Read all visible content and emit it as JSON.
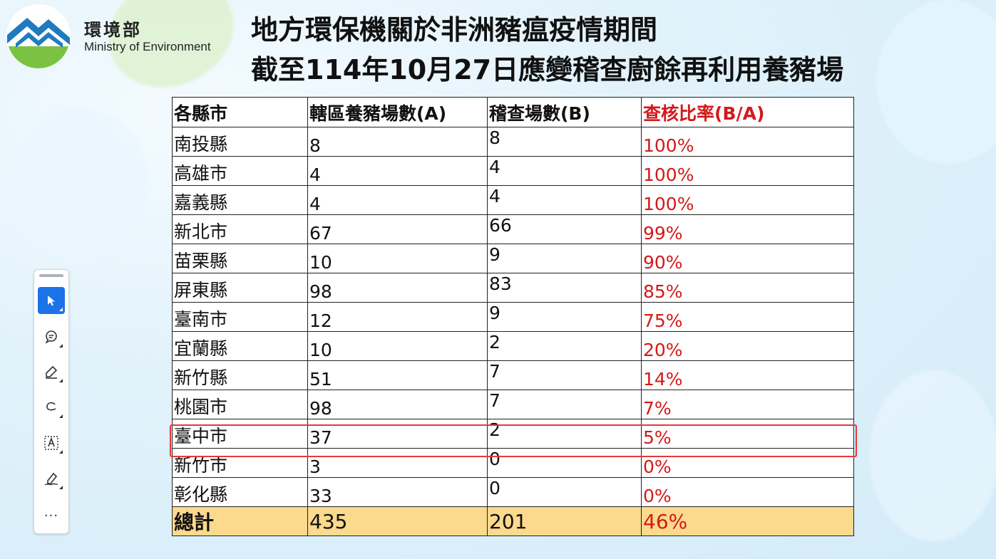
{
  "logo": {
    "cn": "環境部",
    "en": "Ministry of Environment"
  },
  "title": {
    "line1": "地方環保機關於非洲豬瘟疫情期間",
    "line2": "截至114年10月27日應變稽查廚餘再利用養豬場"
  },
  "table": {
    "headers": [
      "各縣市",
      "轄區養豬場數(A)",
      "稽查場數(B)",
      "查核比率(B/A)"
    ],
    "rows": [
      [
        "南投縣",
        "8",
        "8",
        "100%"
      ],
      [
        "高雄市",
        "4",
        "4",
        "100%"
      ],
      [
        "嘉義縣",
        "4",
        "4",
        "100%"
      ],
      [
        "新北市",
        "67",
        "66",
        "99%"
      ],
      [
        "苗栗縣",
        "10",
        "9",
        "90%"
      ],
      [
        "屏東縣",
        "98",
        "83",
        "85%"
      ],
      [
        "臺南市",
        "12",
        "9",
        "75%"
      ],
      [
        "宜蘭縣",
        "10",
        "2",
        "20%"
      ],
      [
        "新竹縣",
        "51",
        "7",
        "14%"
      ],
      [
        "桃園市",
        "98",
        "7",
        "7%"
      ],
      [
        "臺中市",
        "37",
        "2",
        "5%"
      ],
      [
        "新竹市",
        "3",
        "0",
        "0%"
      ],
      [
        "彰化縣",
        "33",
        "0",
        "0%"
      ]
    ],
    "total": [
      "總計",
      "435",
      "201",
      "46%"
    ],
    "highlighted_row": "臺中市"
  },
  "toolbar": {
    "tools": [
      "select-tool",
      "comment-tool",
      "highlight-tool",
      "draw-tool",
      "text-box-tool",
      "sign-tool"
    ],
    "active_tool": "select-tool",
    "more_label": "..."
  },
  "colors": {
    "accent_red": "#d41919",
    "total_row_bg": "#fbd98d",
    "active_tool_bg": "#1c73e8",
    "highlight_border": "#e23a3a"
  }
}
